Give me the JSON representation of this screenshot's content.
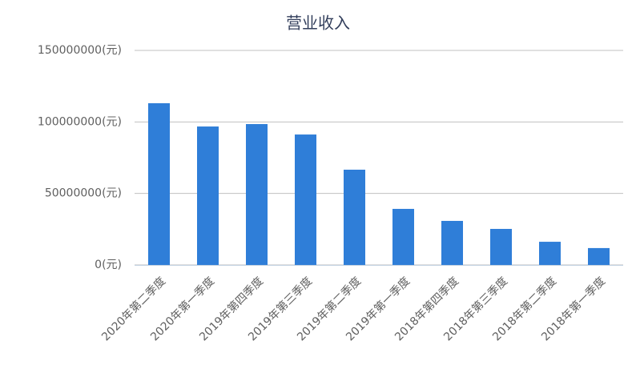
{
  "chart_data": {
    "type": "bar",
    "title": "营业收入",
    "categories": [
      "2020年第二季度",
      "2020年第一季度",
      "2019年第四季度",
      "2019年第三季度",
      "2019年第二季度",
      "2019年第一季度",
      "2018年第四季度",
      "2018年第三季度",
      "2018年第二季度",
      "2018年第一季度"
    ],
    "values": [
      113100000,
      96800000,
      98500000,
      91200000,
      66600000,
      39200000,
      30800000,
      25200000,
      16200000,
      11800000
    ],
    "color": "#2f7ed8",
    "ylim": [
      0,
      150000000
    ],
    "yticks": [
      {
        "value": 0,
        "label": "0(元)"
      },
      {
        "value": 50000000,
        "label": "50000000(元)"
      },
      {
        "value": 100000000,
        "label": "100000000(元)"
      },
      {
        "value": 150000000,
        "label": "150000000(元)"
      }
    ],
    "grid": true
  }
}
